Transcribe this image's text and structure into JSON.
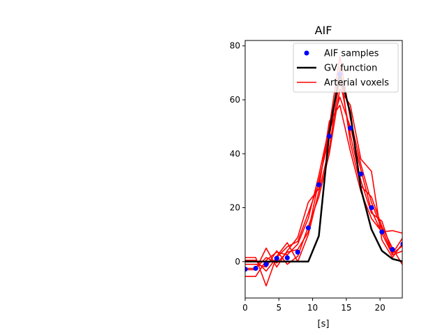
{
  "chart_data": {
    "type": "line",
    "title": "AIF",
    "xlabel": "[s]",
    "ylabel": "",
    "xlim": [
      0,
      23.3
    ],
    "ylim": [
      -13.5,
      82
    ],
    "x_ticks": [
      0,
      5,
      10,
      15,
      20
    ],
    "y_ticks": [
      0,
      20,
      40,
      60,
      80
    ],
    "grid": false,
    "legend": {
      "placement": "top-right",
      "entries": [
        "AIF samples",
        "GV function",
        "Arterial voxels"
      ]
    },
    "colors": {
      "samples": "#0000ff",
      "gv": "#000000",
      "voxels": "#ff0000"
    },
    "samples": {
      "name": "AIF samples",
      "x": [
        0,
        1.56,
        3.12,
        4.68,
        6.24,
        7.8,
        9.36,
        10.92,
        12.48,
        14.04,
        15.6,
        17.16,
        18.72,
        20.28,
        21.84,
        23.4
      ],
      "y": [
        -2.8,
        -2.5,
        -1.0,
        1.2,
        1.4,
        3.5,
        12.5,
        28.5,
        46.5,
        69.5,
        49.5,
        32.5,
        20.0,
        11.0,
        4.5,
        6.5
      ]
    },
    "gv": {
      "name": "GV function",
      "x": [
        0,
        1.56,
        3.12,
        4.68,
        6.24,
        7.8,
        9.36,
        10.92,
        12.48,
        14.04,
        15.6,
        17.16,
        18.72,
        20.28,
        21.84,
        23.4
      ],
      "y": [
        0,
        0,
        0,
        0,
        0,
        0,
        0,
        9.5,
        48,
        70,
        55,
        27,
        12,
        4,
        1,
        0
      ]
    },
    "voxels": {
      "name": "Arterial voxels",
      "x": [
        0,
        1.56,
        3.12,
        4.68,
        6.24,
        7.8,
        9.36,
        10.92,
        12.48,
        14.04,
        15.6,
        17.16,
        18.72,
        20.28,
        21.84,
        23.4
      ],
      "series": [
        [
          -5.5,
          -5.5,
          0.5,
          3.5,
          2.5,
          6.5,
          16.0,
          32.0,
          50.0,
          76.0,
          53.0,
          36.0,
          22.0,
          12.0,
          3.0,
          9.0
        ],
        [
          1.5,
          1.5,
          -9.0,
          2.0,
          7.0,
          0.0,
          10.0,
          26.0,
          42.0,
          68.0,
          47.0,
          30.0,
          18.0,
          15.0,
          3.0,
          6.0
        ],
        [
          -3.0,
          -3.0,
          5.0,
          -2.0,
          4.0,
          9.0,
          22.0,
          27.0,
          52.0,
          58.0,
          41.0,
          26.0,
          16.0,
          11.0,
          11.5,
          10.5
        ],
        [
          -1.0,
          -1.0,
          -2.0,
          4.0,
          -1.0,
          2.0,
          13.0,
          24.0,
          40.0,
          64.0,
          58.0,
          38.0,
          33.5,
          8.0,
          1.5,
          7.0
        ],
        [
          -2.5,
          -2.5,
          1.5,
          -0.5,
          3.5,
          4.5,
          11.0,
          30.0,
          46.0,
          72.0,
          44.0,
          28.0,
          24.0,
          13.0,
          5.0,
          -1.5
        ],
        [
          0.5,
          0.5,
          -3.5,
          1.5,
          5.5,
          7.5,
          18.0,
          29.0,
          48.0,
          61.0,
          50.0,
          34.0,
          19.0,
          10.5,
          2.5,
          4.0
        ]
      ]
    }
  }
}
